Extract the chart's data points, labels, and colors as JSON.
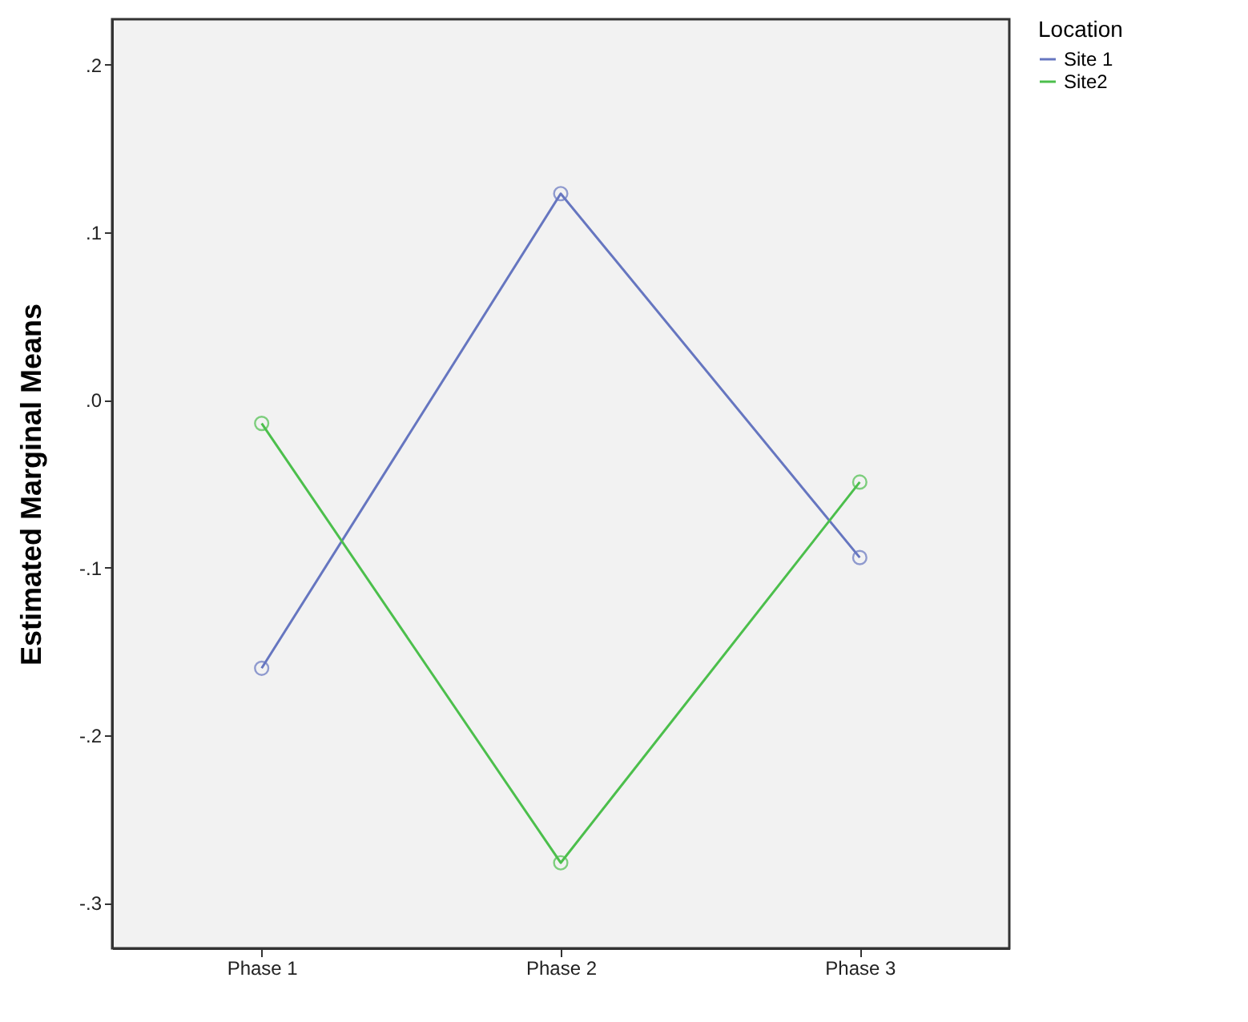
{
  "chart_data": {
    "type": "line",
    "ylabel": "Estimated Marginal Means",
    "legend_title": "Location",
    "categories": [
      "Phase 1",
      "Phase 2",
      "Phase 3"
    ],
    "series": [
      {
        "name": "Site 1",
        "color": "#6676c0",
        "values": [
          -0.16,
          0.123,
          -0.094
        ]
      },
      {
        "name": "Site2",
        "color": "#4cbf4c",
        "values": [
          -0.014,
          -0.276,
          -0.049
        ]
      }
    ],
    "ylim": [
      -0.327,
      0.227
    ],
    "yticks": [
      {
        "value": -0.3,
        "label": "-.3"
      },
      {
        "value": -0.2,
        "label": "-.2"
      },
      {
        "value": -0.1,
        "label": "-.1"
      },
      {
        "value": 0,
        "label": ".0"
      },
      {
        "value": 0.1,
        "label": ".1"
      },
      {
        "value": 0.2,
        "label": ".2"
      }
    ],
    "grid": false,
    "legend": "top right",
    "marker": "circle",
    "line_style": "solid"
  }
}
